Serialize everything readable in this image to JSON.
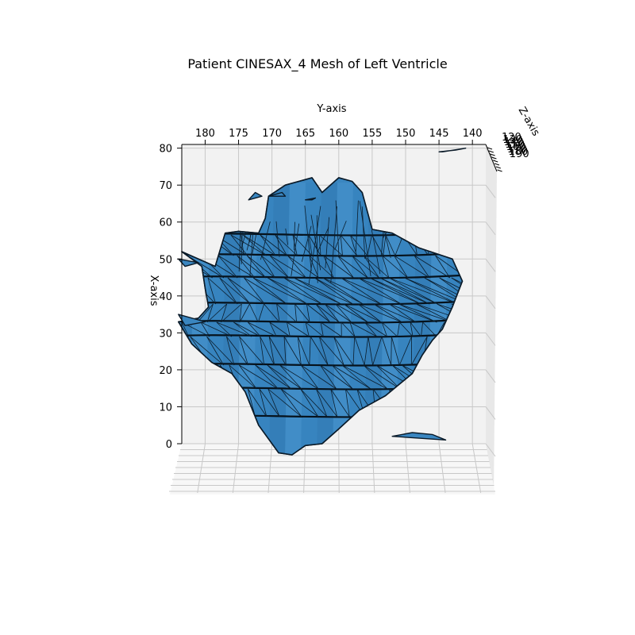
{
  "chart_data": {
    "type": "surface3d",
    "title": "Patient CINESAX_4 Mesh of Left Ventricle",
    "xlabel": "X-axis",
    "ylabel": "Y-axis",
    "zlabel": "Z-axis",
    "x_ticks": [
      0,
      10,
      20,
      30,
      40,
      50,
      60,
      70,
      80
    ],
    "y_ticks": [
      180,
      175,
      170,
      165,
      160,
      155,
      150,
      145,
      140
    ],
    "z_ticks": [
      120,
      130,
      140,
      150,
      160,
      170,
      180,
      190
    ],
    "xlim": [
      0,
      81
    ],
    "ylim": [
      183.5,
      138
    ],
    "zlim": [
      120,
      190
    ],
    "grid": true,
    "colors": {
      "face": "#3a86c0",
      "edge": "#0a1a28",
      "pane": "#f2f2f2",
      "grid": "#c8c8c8"
    },
    "mesh_outlines": [
      {
        "name": "main-body",
        "points": [
          [
            48,
            180.5
          ],
          [
            52,
            183.5
          ],
          [
            48,
            178.5
          ],
          [
            57,
            177
          ],
          [
            57.5,
            175
          ],
          [
            57,
            172
          ],
          [
            61,
            171
          ],
          [
            67,
            170.5
          ],
          [
            70,
            168
          ],
          [
            72,
            164
          ],
          [
            68,
            162.5
          ],
          [
            72,
            160
          ],
          [
            71,
            158
          ],
          [
            68,
            156.5
          ],
          [
            58,
            155
          ],
          [
            57,
            152
          ],
          [
            53,
            148
          ],
          [
            50,
            143
          ],
          [
            44,
            141.5
          ],
          [
            37,
            143
          ],
          [
            31,
            144.5
          ],
          [
            28,
            146
          ],
          [
            24,
            147.5
          ],
          [
            19,
            149
          ],
          [
            16,
            151
          ],
          [
            13,
            153
          ],
          [
            11,
            155
          ],
          [
            9,
            157
          ],
          [
            4,
            160
          ],
          [
            0,
            162.5
          ],
          [
            -0.5,
            165
          ],
          [
            -3,
            167
          ],
          [
            -2.5,
            169
          ],
          [
            5,
            172
          ],
          [
            14,
            174
          ],
          [
            19,
            176
          ],
          [
            22,
            179
          ],
          [
            27,
            182
          ],
          [
            33,
            184
          ],
          [
            34,
            181
          ],
          [
            37,
            179.5
          ],
          [
            42,
            180
          ],
          [
            48,
            180.5
          ]
        ]
      },
      {
        "name": "flap-left-upper",
        "points": [
          [
            48,
            183
          ],
          [
            50,
            184
          ],
          [
            49,
            181
          ],
          [
            48,
            183
          ]
        ]
      },
      {
        "name": "flap-left-lower",
        "points": [
          [
            32,
            183
          ],
          [
            35,
            184
          ],
          [
            33,
            180
          ],
          [
            32,
            183
          ]
        ]
      },
      {
        "name": "fragment-top-right",
        "points": [
          [
            79,
            145
          ],
          [
            79.5,
            142.5
          ],
          [
            80,
            141
          ],
          [
            79,
            144.5
          ],
          [
            79,
            145
          ]
        ]
      },
      {
        "name": "fragment-top-a",
        "points": [
          [
            66,
            173.5
          ],
          [
            68,
            172.5
          ],
          [
            67,
            171.5
          ],
          [
            66,
            173.5
          ]
        ]
      },
      {
        "name": "fragment-top-b",
        "points": [
          [
            67,
            170.5
          ],
          [
            68,
            168.5
          ],
          [
            67,
            168
          ],
          [
            67,
            170.5
          ]
        ]
      },
      {
        "name": "fragment-top-c",
        "points": [
          [
            66,
            165
          ],
          [
            66.5,
            163.5
          ],
          [
            66,
            164
          ],
          [
            66,
            165
          ]
        ]
      },
      {
        "name": "fragment-bottom-right",
        "points": [
          [
            2,
            152
          ],
          [
            3,
            149
          ],
          [
            2.5,
            146
          ],
          [
            1,
            144
          ],
          [
            2,
            152
          ]
        ]
      }
    ]
  }
}
